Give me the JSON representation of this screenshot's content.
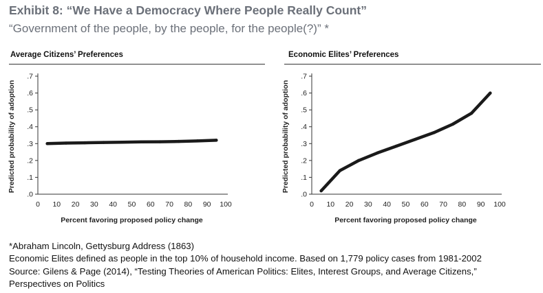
{
  "header": {
    "title": "Exhibit 8: “We Have a Democracy Where People Really Count”",
    "subtitle": "“Government of the people, by the people, for the people(?)” *"
  },
  "chart_data": [
    {
      "type": "line",
      "title": "Average Citizens’ Preferences",
      "xlabel": "Percent favoring proposed policy change",
      "ylabel": "Predicted probability of adoption",
      "xlim": [
        0,
        100
      ],
      "ylim": [
        0,
        0.7
      ],
      "xticks": [
        0,
        10,
        20,
        30,
        40,
        50,
        60,
        70,
        80,
        90,
        100
      ],
      "yticks": [
        0,
        0.1,
        0.2,
        0.3,
        0.4,
        0.5,
        0.6,
        0.7
      ],
      "xtick_labels": [
        "0",
        "10",
        "20",
        "30",
        "40",
        "50",
        "60",
        "70",
        "80",
        "90",
        "100"
      ],
      "ytick_labels": [
        ".0",
        ".1",
        ".2",
        ".3",
        ".4",
        ".5",
        ".6",
        ".7"
      ],
      "grid": false,
      "series": [
        {
          "name": "Average Citizens",
          "color": "#1a1a1a",
          "x": [
            5,
            15,
            25,
            35,
            45,
            55,
            65,
            75,
            85,
            95
          ],
          "y": [
            0.3,
            0.303,
            0.305,
            0.307,
            0.308,
            0.31,
            0.311,
            0.313,
            0.316,
            0.32
          ]
        }
      ]
    },
    {
      "type": "line",
      "title": "Economic Elites’ Preferences",
      "xlabel": "Percent favoring proposed policy change",
      "ylabel": "Predicted probability of adoption",
      "xlim": [
        0,
        100
      ],
      "ylim": [
        0,
        0.7
      ],
      "xticks": [
        0,
        10,
        20,
        30,
        40,
        50,
        60,
        70,
        80,
        90,
        100
      ],
      "yticks": [
        0,
        0.1,
        0.2,
        0.3,
        0.4,
        0.5,
        0.6,
        0.7
      ],
      "xtick_labels": [
        "0",
        "10",
        "20",
        "30",
        "40",
        "50",
        "60",
        "70",
        "80",
        "90",
        "100"
      ],
      "ytick_labels": [
        ".0",
        ".1",
        ".2",
        ".3",
        ".4",
        ".5",
        ".6",
        ".7"
      ],
      "grid": false,
      "series": [
        {
          "name": "Economic Elites",
          "color": "#1a1a1a",
          "x": [
            5,
            15,
            25,
            35,
            45,
            55,
            65,
            75,
            85,
            95
          ],
          "y": [
            0.02,
            0.14,
            0.2,
            0.245,
            0.285,
            0.325,
            0.365,
            0.415,
            0.48,
            0.6
          ]
        }
      ]
    }
  ],
  "footnotes": [
    "*Abraham Lincoln, Gettysburg Address (1863)",
    "Economic Elites defined as people in the top 10% of household income. Based on 1,779 policy cases from 1981-2002",
    "Source:  Gilens & Page (2014), “Testing Theories of American Politics: Elites, Interest Groups, and Average Citizens,”",
    "Perspectives on Politics"
  ]
}
